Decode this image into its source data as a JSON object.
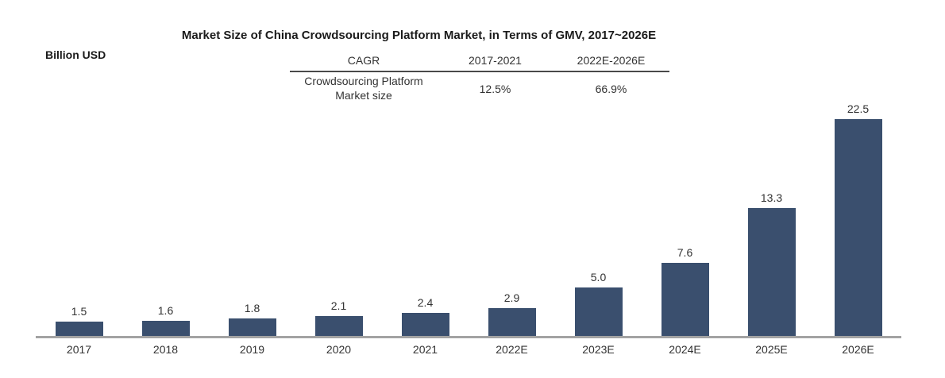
{
  "header": {
    "title": "Market Size of China Crowdsourcing Platform Market, in Terms of GMV, 2017~2026E",
    "units_label": "Billion USD"
  },
  "cagr_table": {
    "header": [
      "CAGR",
      "2017-2021",
      "2022E-2026E"
    ],
    "row_label": "Crowdsourcing Platform Market size",
    "row_values": [
      "12.5%",
      "66.9%"
    ]
  },
  "chart_data": {
    "type": "bar",
    "title": "Market Size of China Crowdsourcing Platform Market, in Terms of GMV, 2017~2026E",
    "ylabel": "Billion USD",
    "xlabel": "",
    "categories": [
      "2017",
      "2018",
      "2019",
      "2020",
      "2021",
      "2022E",
      "2023E",
      "2024E",
      "2025E",
      "2026E"
    ],
    "values": [
      1.5,
      1.6,
      1.8,
      2.1,
      2.4,
      2.9,
      5.0,
      7.6,
      13.3,
      22.5
    ],
    "value_labels": [
      "1.5",
      "1.6",
      "1.8",
      "2.1",
      "2.4",
      "2.9",
      "5.0",
      "7.6",
      "13.3",
      "22.5"
    ],
    "ylim": [
      0,
      25
    ],
    "grid": false,
    "legend": "none",
    "data_labels": true,
    "bar_color": "#3A4F6E",
    "axis_line_color": "#A3A3A3",
    "label_color": "#333333"
  }
}
